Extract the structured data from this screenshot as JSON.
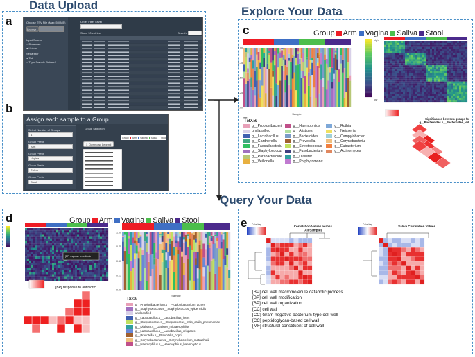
{
  "headings": {
    "upload": "Data Upload",
    "explore": "Explore Your Data",
    "query": "Query Your Data"
  },
  "panel_letters": {
    "a": "a",
    "b": "b",
    "c": "c",
    "d": "d",
    "e": "e"
  },
  "panel_a": {
    "file_label": "Choose TSV File (Max=500MB)",
    "browse": "Browse...",
    "filter_label": "Order Filter Level",
    "input_source_label": "Input Source",
    "source_options": [
      "Database",
      "Upload"
    ],
    "separator_label": "Separator",
    "separator_options": [
      "Tab",
      "Try a Sample Dataset!"
    ],
    "show_entries": "Show 10 entries",
    "search_label": "Search:"
  },
  "panel_b": {
    "title": "Assign each sample to a Group",
    "select_number_label": "Select Number of Groups",
    "number_value": "4",
    "group_prefix_label": "Group Prefix",
    "prefix_values": [
      "Arm",
      "Vagina",
      "Saliva",
      "Stool"
    ],
    "group_selection_label": "Group Selection",
    "download_legend": "Download Legend"
  },
  "group_legend": {
    "title": "Group",
    "items": [
      {
        "label": "Arm",
        "color": "#ee1c25"
      },
      {
        "label": "Vagina",
        "color": "#3f6fc4"
      },
      {
        "label": "Saliva",
        "color": "#4cbe4c"
      },
      {
        "label": "Stool",
        "color": "#4b2a8c"
      }
    ]
  },
  "panel_c": {
    "taxa_title": "Taxa",
    "sample_label": "Sample",
    "significance_title": "Significance between groups for g__Bacteroides.s__Bacteroides_vulgatus",
    "high_label": "high",
    "low_label": "low",
    "taxa": [
      {
        "label": "g__Propionibacterium",
        "color": "#e8a0b8"
      },
      {
        "label": "g__Haemophilus",
        "color": "#c0508a"
      },
      {
        "label": "g__Rothia",
        "color": "#7ea8d8"
      },
      {
        "label": "unclassified",
        "color": "#d8d0e8"
      },
      {
        "label": "g__Alistipes",
        "color": "#b0e0a0"
      },
      {
        "label": "g__Neisseria",
        "color": "#f0e060"
      },
      {
        "label": "g__Lactobacillus",
        "color": "#4060b0"
      },
      {
        "label": "g__Bacteroides",
        "color": "#7a9cc8"
      },
      {
        "label": "g__Campylobacter",
        "color": "#a0d0d8"
      },
      {
        "label": "g__Gardnerella",
        "color": "#40a880"
      },
      {
        "label": "g__Prevotella",
        "color": "#a06030"
      },
      {
        "label": "g__Corynebacterium",
        "color": "#f0c080"
      },
      {
        "label": "g__Faecalibacterium",
        "color": "#30c060"
      },
      {
        "label": "g__Streptococcus",
        "color": "#c0e060"
      },
      {
        "label": "g__Eubacterium",
        "color": "#f08040"
      },
      {
        "label": "g__Staphylococcus",
        "color": "#a070c0"
      },
      {
        "label": "g__Fusobacterium",
        "color": "#404080"
      },
      {
        "label": "g__Actinomyces",
        "color": "#e08860"
      },
      {
        "label": "g__Parabacteroides",
        "color": "#b8c878"
      },
      {
        "label": "g__Dialister",
        "color": "#30a0a0"
      },
      {
        "label": "",
        "color": "#ffffff"
      },
      {
        "label": "g__Veillonella",
        "color": "#e8b040"
      },
      {
        "label": "g__Porphyromonas",
        "color": "#c07ad0"
      },
      {
        "label": "",
        "color": "#ffffff"
      }
    ]
  },
  "panel_d": {
    "taxa_title": "Taxa",
    "sample_label": "Sample",
    "response_title": "[BP] response to antibiotic",
    "tooltip": "[BP] response to antibiotic",
    "taxa": [
      {
        "label": "g__Propionibacterium.s__Propionibacterium_acnes",
        "color": "#e8a0b8"
      },
      {
        "label": "g__Staphylococcus.s__Staphylococcus_epidermidis",
        "color": "#a070c0"
      },
      {
        "label": "unclassified",
        "color": "#d8d0e8"
      },
      {
        "label": "g__Lactobacillus.s__Lactobacillus_iners",
        "color": "#4060b0"
      },
      {
        "label": "g__Streptococcus.s__Streptococcus_mitis_oralis_pneumoniae",
        "color": "#c0e060"
      },
      {
        "label": "g__Dialister.s__Dialister_micraerophilus",
        "color": "#30a0a0"
      },
      {
        "label": "g__Lactobacillus.s__Lactobacillus_crispatus",
        "color": "#6a88d8"
      },
      {
        "label": "g__Prevotella.s__Prevotella_copri",
        "color": "#a06030"
      },
      {
        "label": "g__Corynebacterium.s__Corynebacterium_matruchotii",
        "color": "#f0c080"
      },
      {
        "label": "g__Haemophilus.s__Haemophilus_haemolyticus",
        "color": "#c0508a"
      }
    ]
  },
  "panel_e": {
    "left_title": "Correlation Values across All Samples",
    "right_title": "Saliva Correlation Values",
    "color_key": "Color Key",
    "go_terms": [
      "[BP] cell wall macromolecule catabolic process",
      "[BP] cell wall modification",
      "[BP] cell wall organization",
      "[CC] cell wall",
      "[CC] Gram-negative-bacterium-type cell wall",
      "[CC] peptidoglycan-based cell wall",
      "[MF] structural constituent of cell wall"
    ]
  },
  "axis_ticks": [
    "1.00",
    "0.75",
    "0.50",
    "0.25",
    "0.00"
  ]
}
